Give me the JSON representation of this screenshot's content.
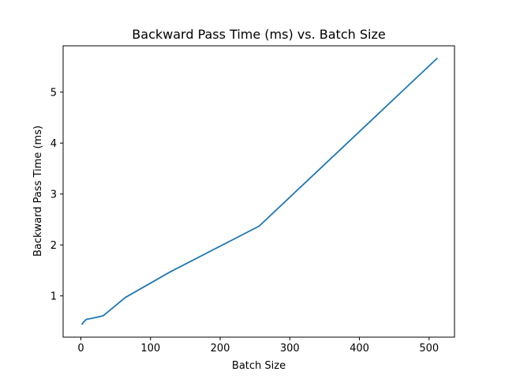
{
  "chart_data": {
    "type": "line",
    "title": "Backward Pass Time (ms) vs. Batch Size",
    "xlabel": "Batch Size",
    "ylabel": "Backward Pass Time (ms)",
    "xlim": [
      -25.5,
      536.5
    ],
    "ylim": [
      0.19,
      5.91
    ],
    "xticks": [
      0,
      100,
      200,
      300,
      400,
      500
    ],
    "yticks": [
      1,
      2,
      3,
      4,
      5
    ],
    "grid": false,
    "series": [
      {
        "color": "#1f77b4",
        "x": [
          1,
          2,
          4,
          8,
          16,
          32,
          64,
          128,
          256,
          512
        ],
        "y": [
          0.44,
          0.45,
          0.49,
          0.54,
          0.56,
          0.61,
          0.97,
          1.47,
          2.37,
          5.67
        ]
      }
    ]
  }
}
